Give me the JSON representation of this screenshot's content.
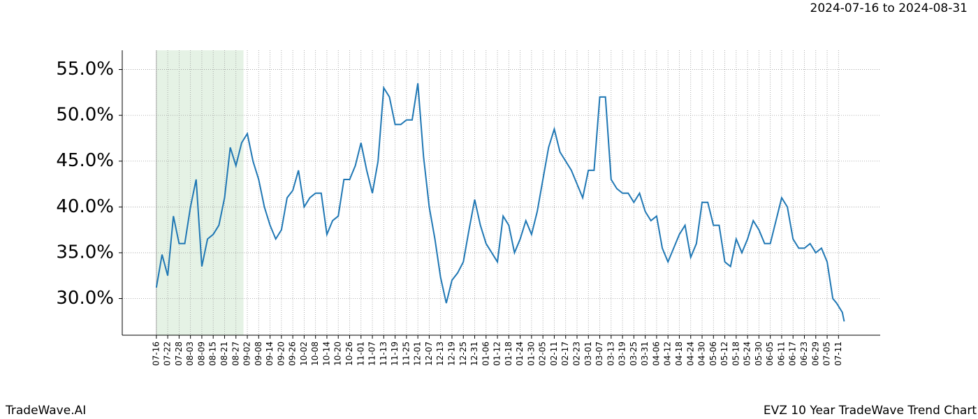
{
  "chart_data": {
    "type": "line",
    "title": "EVZ 10 Year TradeWave Trend Chart",
    "subtitle": "2024-07-16 to 2024-08-31",
    "source": "TradeWave.AI",
    "highlight": {
      "start": 0,
      "end": 46,
      "color": "#e5f2e5"
    },
    "x": [
      0,
      3,
      6,
      9,
      12,
      15,
      18,
      21,
      24,
      27,
      30,
      33,
      36,
      39,
      42,
      45,
      48,
      51,
      54,
      57,
      60,
      63,
      66,
      69,
      72,
      75,
      78,
      81,
      84,
      87,
      90,
      93,
      96,
      99,
      102,
      105,
      108,
      111,
      114,
      117,
      120,
      123,
      126,
      129,
      132,
      135,
      138,
      141,
      144,
      147,
      150,
      153,
      156,
      159,
      162,
      165,
      168,
      171,
      174,
      177,
      180,
      183,
      186,
      189,
      192,
      195,
      198,
      201,
      204,
      207,
      210,
      213,
      216,
      219,
      222,
      225,
      228,
      231,
      234,
      237,
      240,
      243,
      246,
      249,
      252,
      255,
      258,
      261,
      264,
      267,
      270,
      273,
      276,
      279,
      282,
      285,
      288,
      291,
      294,
      297,
      300,
      303,
      306,
      309,
      312,
      315,
      318,
      321,
      324,
      327,
      330,
      333,
      336,
      339,
      342,
      345,
      348,
      351,
      354,
      357,
      359,
      362,
      363
    ],
    "series": [
      {
        "name": "EVZ",
        "color": "#1f77b4",
        "values": [
          31.2,
          34.8,
          32.5,
          39.0,
          36.0,
          36.0,
          40.0,
          43.0,
          33.5,
          36.5,
          37.0,
          38.0,
          41.0,
          46.5,
          44.5,
          47.0,
          48.0,
          45.0,
          43.0,
          40.0,
          38.0,
          36.5,
          37.5,
          41.0,
          41.8,
          44.0,
          40.0,
          41.0,
          41.5,
          41.5,
          37.0,
          38.5,
          39.0,
          43.0,
          43.0,
          44.5,
          47.0,
          44.0,
          41.5,
          45.0,
          53.0,
          52.0,
          49.0,
          49.0,
          49.5,
          49.5,
          53.5,
          45.5,
          40.0,
          36.5,
          32.3,
          29.5,
          32.0,
          32.8,
          34.0,
          37.5,
          40.8,
          38.0,
          36.0,
          35.0,
          34.0,
          39.0,
          38.0,
          35.0,
          36.5,
          38.5,
          37.0,
          39.5,
          43.0,
          46.5,
          48.5,
          46.0,
          45.0,
          44.0,
          42.5,
          41.0,
          44.0,
          44.0,
          52.0,
          52.0,
          43.0,
          42.0,
          41.5,
          41.5,
          40.5,
          41.5,
          39.5,
          38.5,
          39.0,
          35.5,
          34.0,
          35.5,
          37.0,
          38.0,
          34.5,
          36.0,
          40.5,
          40.5,
          38.0,
          38.0,
          34.0,
          33.5,
          36.5,
          35.0,
          36.5,
          38.5,
          37.5,
          36.0,
          36.0,
          38.5,
          41.0,
          40.0,
          36.5,
          35.5,
          35.5,
          36.0,
          35.0,
          35.5,
          34.0,
          30.0,
          29.5,
          28.5,
          27.5
        ]
      }
    ],
    "xlim": [
      -18,
      382
    ],
    "ylim": [
      26.0,
      57.1
    ],
    "xticks": [
      {
        "value": 0,
        "label": "07-16"
      },
      {
        "value": 6,
        "label": "07-22"
      },
      {
        "value": 12,
        "label": "07-28"
      },
      {
        "value": 18,
        "label": "08-03"
      },
      {
        "value": 24,
        "label": "08-09"
      },
      {
        "value": 30,
        "label": "08-15"
      },
      {
        "value": 36,
        "label": "08-21"
      },
      {
        "value": 42,
        "label": "08-27"
      },
      {
        "value": 48,
        "label": "09-02"
      },
      {
        "value": 54,
        "label": "09-08"
      },
      {
        "value": 60,
        "label": "09-14"
      },
      {
        "value": 66,
        "label": "09-20"
      },
      {
        "value": 72,
        "label": "09-26"
      },
      {
        "value": 78,
        "label": "10-02"
      },
      {
        "value": 84,
        "label": "10-08"
      },
      {
        "value": 90,
        "label": "10-14"
      },
      {
        "value": 96,
        "label": "10-20"
      },
      {
        "value": 102,
        "label": "10-26"
      },
      {
        "value": 108,
        "label": "11-01"
      },
      {
        "value": 114,
        "label": "11-07"
      },
      {
        "value": 120,
        "label": "11-13"
      },
      {
        "value": 126,
        "label": "11-19"
      },
      {
        "value": 132,
        "label": "11-25"
      },
      {
        "value": 138,
        "label": "12-01"
      },
      {
        "value": 144,
        "label": "12-07"
      },
      {
        "value": 150,
        "label": "12-13"
      },
      {
        "value": 156,
        "label": "12-19"
      },
      {
        "value": 162,
        "label": "12-25"
      },
      {
        "value": 168,
        "label": "12-31"
      },
      {
        "value": 174,
        "label": "01-06"
      },
      {
        "value": 180,
        "label": "01-12"
      },
      {
        "value": 186,
        "label": "01-18"
      },
      {
        "value": 192,
        "label": "01-24"
      },
      {
        "value": 198,
        "label": "01-30"
      },
      {
        "value": 204,
        "label": "02-05"
      },
      {
        "value": 210,
        "label": "02-11"
      },
      {
        "value": 216,
        "label": "02-17"
      },
      {
        "value": 222,
        "label": "02-23"
      },
      {
        "value": 228,
        "label": "03-01"
      },
      {
        "value": 234,
        "label": "03-07"
      },
      {
        "value": 240,
        "label": "03-13"
      },
      {
        "value": 246,
        "label": "03-19"
      },
      {
        "value": 252,
        "label": "03-25"
      },
      {
        "value": 258,
        "label": "03-31"
      },
      {
        "value": 264,
        "label": "04-06"
      },
      {
        "value": 270,
        "label": "04-12"
      },
      {
        "value": 276,
        "label": "04-18"
      },
      {
        "value": 282,
        "label": "04-24"
      },
      {
        "value": 288,
        "label": "04-30"
      },
      {
        "value": 294,
        "label": "05-06"
      },
      {
        "value": 300,
        "label": "05-12"
      },
      {
        "value": 306,
        "label": "05-18"
      },
      {
        "value": 312,
        "label": "05-24"
      },
      {
        "value": 318,
        "label": "05-30"
      },
      {
        "value": 324,
        "label": "06-05"
      },
      {
        "value": 330,
        "label": "06-11"
      },
      {
        "value": 336,
        "label": "06-17"
      },
      {
        "value": 342,
        "label": "06-23"
      },
      {
        "value": 348,
        "label": "06-29"
      },
      {
        "value": 354,
        "label": "07-05"
      },
      {
        "value": 360,
        "label": "07-11"
      }
    ],
    "yticks": [
      {
        "value": 30,
        "label": "30.0%"
      },
      {
        "value": 35,
        "label": "35.0%"
      },
      {
        "value": 40,
        "label": "40.0%"
      },
      {
        "value": 45,
        "label": "45.0%"
      },
      {
        "value": 50,
        "label": "50.0%"
      },
      {
        "value": 55,
        "label": "55.0%"
      }
    ],
    "grid": true
  }
}
